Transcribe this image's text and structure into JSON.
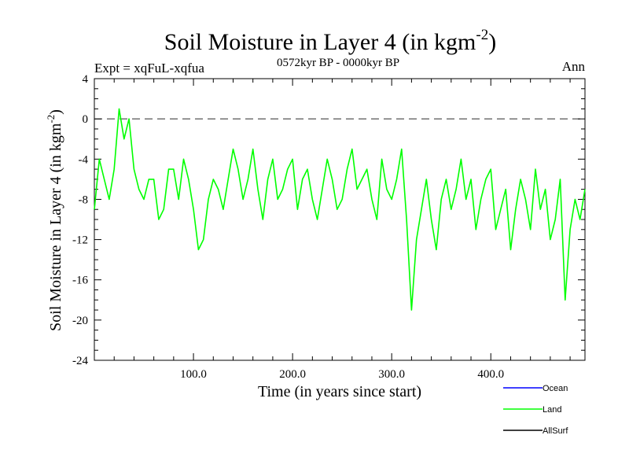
{
  "chart_data": {
    "type": "line",
    "title": "Soil Moisture in Layer 4 (in kgm",
    "title_sup": "-2",
    "title_close": ")",
    "subtitle_left": "Expt = xqFuL-xqfua",
    "subtitle_center": "0572kyr BP - 0000kyr BP",
    "subtitle_right": "Ann",
    "xlabel": "Time (in years since start)",
    "ylabel": "Soil Moisture in Layer 4 (in kgm",
    "ylabel_sup": "-2",
    "ylabel_close": ")",
    "xlim": [
      0,
      495
    ],
    "ylim": [
      -24,
      4
    ],
    "x_ticks": [
      100,
      200,
      300,
      400
    ],
    "x_tick_labels": [
      "100.0",
      "200.0",
      "300.0",
      "400.0"
    ],
    "y_ticks": [
      4,
      0,
      -4,
      -8,
      -12,
      -16,
      -20,
      -24
    ],
    "y_tick_labels": [
      "4",
      "0",
      "-4",
      "-8",
      "-12",
      "-16",
      "-20",
      "-24"
    ],
    "reference_line": {
      "y": 0,
      "style": "dashed",
      "color": "#555555"
    },
    "legend": [
      {
        "label": "Ocean",
        "color": "#0000ff"
      },
      {
        "label": "Land",
        "color": "#00ff00"
      },
      {
        "label": "AllSurf",
        "color": "#000000"
      }
    ],
    "series": [
      {
        "name": "Land",
        "color": "#00ff00",
        "x": [
          0,
          5,
          10,
          15,
          20,
          25,
          30,
          35,
          40,
          45,
          50,
          55,
          60,
          65,
          70,
          75,
          80,
          85,
          90,
          95,
          100,
          105,
          110,
          115,
          120,
          125,
          130,
          135,
          140,
          145,
          150,
          155,
          160,
          165,
          170,
          175,
          180,
          185,
          190,
          195,
          200,
          205,
          210,
          215,
          220,
          225,
          230,
          235,
          240,
          245,
          250,
          255,
          260,
          265,
          270,
          275,
          280,
          285,
          290,
          295,
          300,
          305,
          310,
          315,
          320,
          325,
          330,
          335,
          340,
          345,
          350,
          355,
          360,
          365,
          370,
          375,
          380,
          385,
          390,
          395,
          400,
          405,
          410,
          415,
          420,
          425,
          430,
          435,
          440,
          445,
          450,
          455,
          460,
          465,
          470,
          475,
          480,
          485,
          490,
          495
        ],
        "values": [
          -9,
          -4,
          -6,
          -8,
          -5,
          1,
          -2,
          0,
          -5,
          -7,
          -8,
          -6,
          -6,
          -10,
          -9,
          -5,
          -5,
          -8,
          -4,
          -6,
          -9,
          -13,
          -12,
          -8,
          -6,
          -7,
          -9,
          -6,
          -3,
          -5,
          -8,
          -6,
          -3,
          -7,
          -10,
          -6,
          -4,
          -8,
          -7,
          -5,
          -4,
          -9,
          -6,
          -5,
          -8,
          -10,
          -7,
          -4,
          -6,
          -9,
          -8,
          -5,
          -3,
          -7,
          -6,
          -5,
          -8,
          -10,
          -4,
          -7,
          -8,
          -6,
          -3,
          -10,
          -19,
          -12,
          -9,
          -6,
          -10,
          -13,
          -8,
          -6,
          -9,
          -7,
          -4,
          -8,
          -6,
          -11,
          -8,
          -6,
          -5,
          -11,
          -9,
          -7,
          -13,
          -9,
          -6,
          -8,
          -11,
          -5,
          -9,
          -7,
          -12,
          -10,
          -6,
          -18,
          -11,
          -8,
          -10,
          -7
        ]
      }
    ]
  }
}
